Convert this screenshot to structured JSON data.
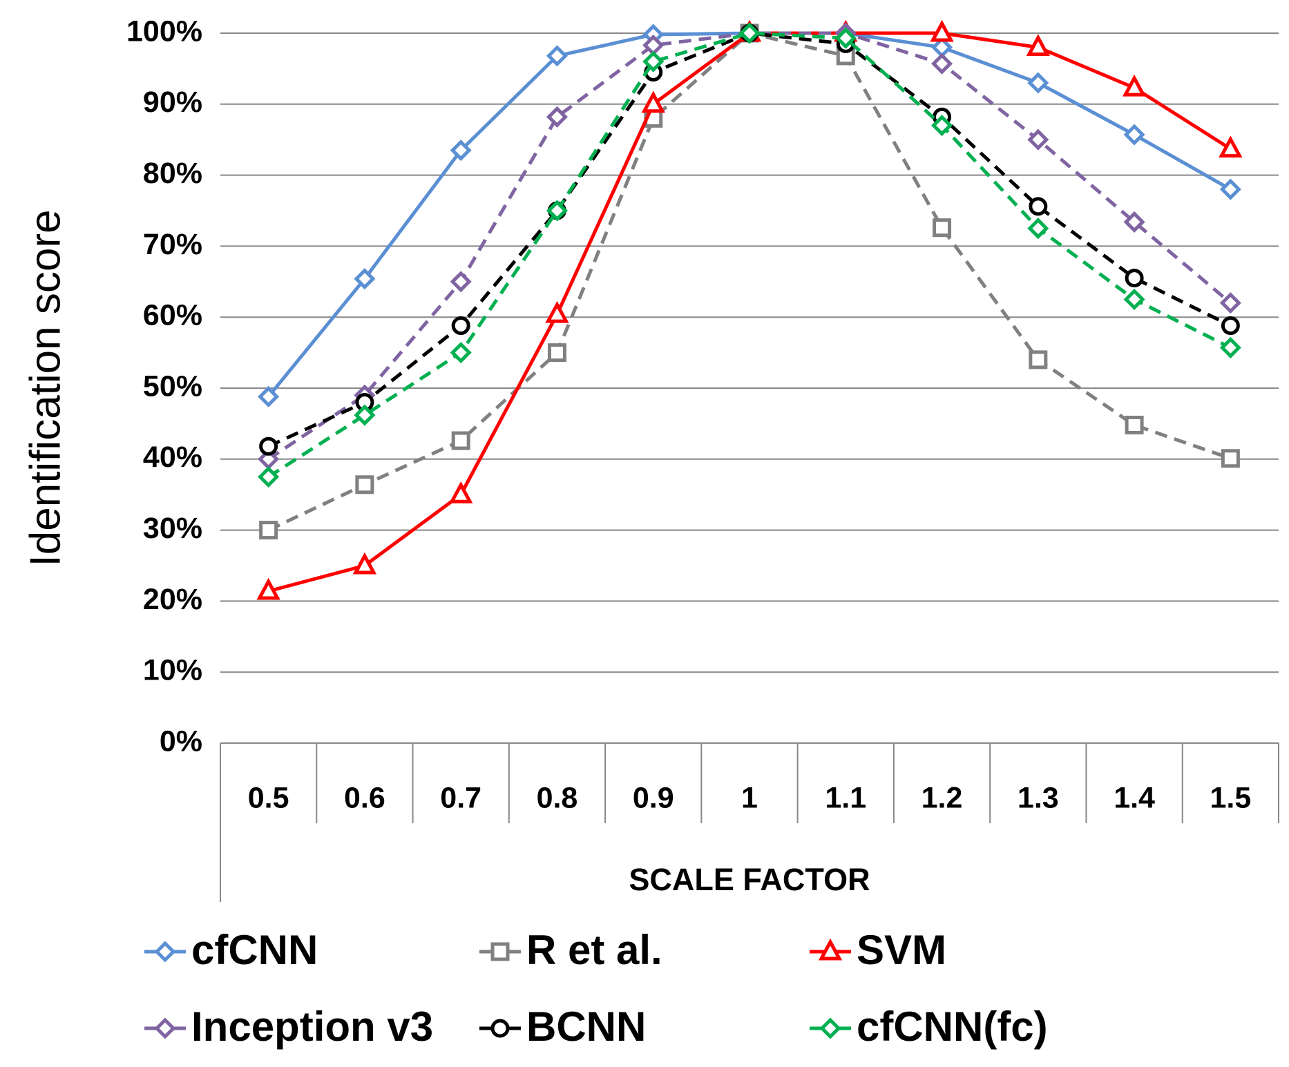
{
  "chart_data": {
    "type": "line",
    "x_label": "SCALE FACTOR",
    "y_label": "Identification score",
    "categories": [
      "0.5",
      "0.6",
      "0.7",
      "0.8",
      "0.9",
      "1",
      "1.1",
      "1.2",
      "1.3",
      "1.4",
      "1.5"
    ],
    "ylim": [
      0,
      100
    ],
    "yticks": [
      {
        "value": 0,
        "label": "0%"
      },
      {
        "value": 10,
        "label": "10%"
      },
      {
        "value": 20,
        "label": "20%"
      },
      {
        "value": 30,
        "label": "30%"
      },
      {
        "value": 40,
        "label": "40%"
      },
      {
        "value": 50,
        "label": "50%"
      },
      {
        "value": 60,
        "label": "60%"
      },
      {
        "value": 70,
        "label": "70%"
      },
      {
        "value": 80,
        "label": "80%"
      },
      {
        "value": 90,
        "label": "90%"
      },
      {
        "value": 100,
        "label": "100%"
      }
    ],
    "grid": true,
    "legend": "bottom",
    "series": [
      {
        "name": "cfCNN",
        "color": "#5b8fd4",
        "marker": "diamond",
        "dashed": false,
        "values": [
          48.8,
          65.4,
          83.5,
          96.8,
          99.8,
          100,
          100,
          98,
          93,
          85.7,
          78
        ]
      },
      {
        "name": "R et al.",
        "color": "#808080",
        "marker": "square",
        "dashed": true,
        "values": [
          30,
          36.4,
          42.6,
          55,
          88,
          100,
          96.8,
          72.6,
          54,
          44.8,
          40.1
        ]
      },
      {
        "name": "SVM",
        "color": "#ff0000",
        "marker": "triangle",
        "dashed": false,
        "values": [
          21.4,
          25,
          35,
          60.4,
          90,
          100,
          100,
          100,
          98,
          92.3,
          83.7
        ]
      },
      {
        "name": "Inception v3",
        "color": "#8064a2",
        "marker": "diamond",
        "dashed": true,
        "values": [
          40,
          49,
          65,
          88.2,
          98.3,
          100,
          100,
          95.7,
          85,
          73.4,
          62
        ]
      },
      {
        "name": "BCNN",
        "color": "#000000",
        "marker": "circle",
        "dashed": true,
        "values": [
          41.8,
          48,
          58.8,
          75,
          94.5,
          100,
          98.5,
          88.2,
          75.6,
          65.5,
          58.8
        ]
      },
      {
        "name": "cfCNN(fc)",
        "color": "#00b050",
        "marker": "diamond",
        "dashed": true,
        "values": [
          37.5,
          46.2,
          55,
          75,
          96,
          100,
          99.3,
          87,
          72.5,
          62.5,
          55.7
        ]
      }
    ]
  }
}
